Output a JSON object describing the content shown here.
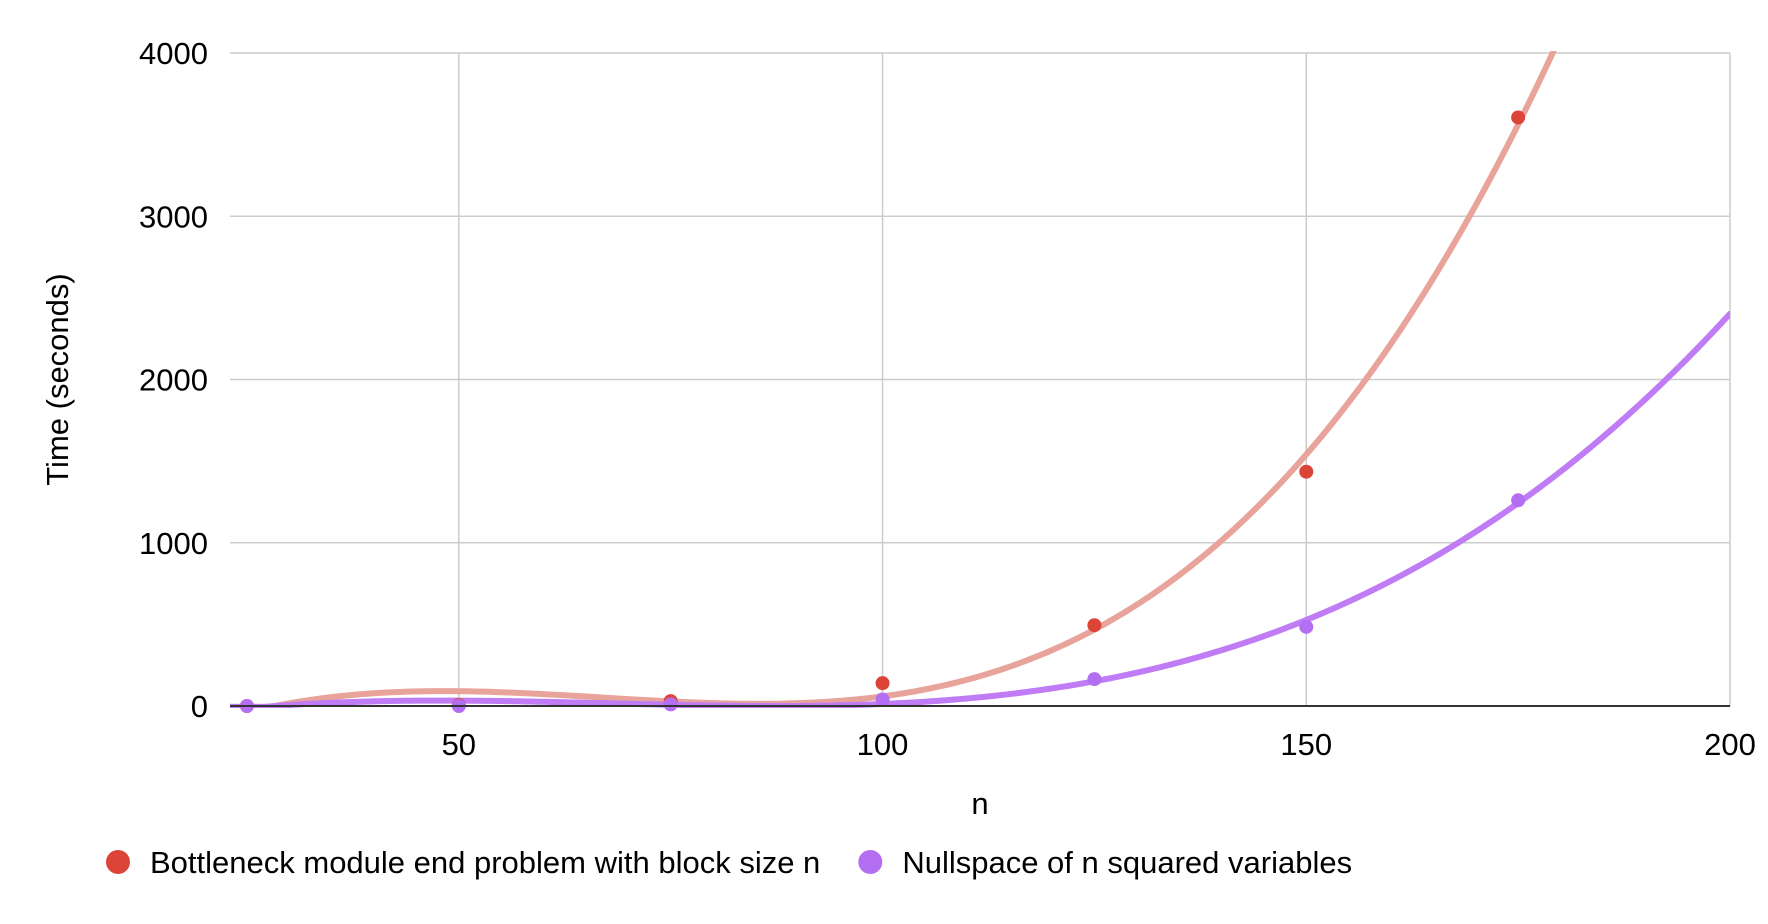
{
  "chart_data": {
    "type": "scatter",
    "title": "",
    "xlabel": "n",
    "ylabel": "Time (seconds)",
    "xlim": [
      23,
      200
    ],
    "ylim": [
      0,
      4000
    ],
    "x_ticks": [
      50,
      100,
      150,
      200
    ],
    "y_ticks": [
      0,
      1000,
      2000,
      3000,
      4000
    ],
    "x_tick_labels": [
      "50",
      "100",
      "150",
      "200"
    ],
    "y_tick_labels": [
      "0",
      "1000",
      "2000",
      "3000",
      "4000"
    ],
    "grid": true,
    "trendlines": "polynomial",
    "legend_position": "bottom-left",
    "series": [
      {
        "name": "Bottleneck module end problem with block size n",
        "color": "#db4437",
        "trend_color": "#e8a39b",
        "x": [
          25,
          50,
          75,
          100,
          125,
          150,
          175
        ],
        "y": [
          0,
          5,
          30,
          140,
          495,
          1435,
          3605
        ]
      },
      {
        "name": "Nullspace of n squared variables",
        "color": "#b46ef2",
        "trend_color": "#bf7cf5",
        "x": [
          25,
          50,
          75,
          100,
          125,
          150,
          175
        ],
        "y": [
          0,
          0,
          10,
          40,
          165,
          485,
          1260
        ]
      }
    ]
  }
}
